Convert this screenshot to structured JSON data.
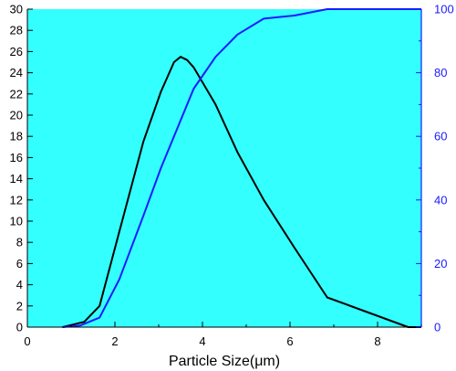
{
  "chart_data": {
    "type": "line",
    "xlabel": "Particle Size(μm)",
    "xlim": [
      0,
      9
    ],
    "x_ticks": [
      0,
      2,
      4,
      6,
      8
    ],
    "left_axis": {
      "ylim": [
        0,
        30
      ],
      "ticks": [
        0,
        2,
        4,
        6,
        8,
        10,
        12,
        14,
        16,
        18,
        20,
        22,
        24,
        26,
        28,
        30
      ],
      "color": "#000000"
    },
    "right_axis": {
      "ylim": [
        0,
        100
      ],
      "ticks": [
        0,
        20,
        40,
        60,
        80,
        100
      ],
      "color": "#1a1aff"
    },
    "background_color": "#33ffff",
    "grid": false,
    "series": [
      {
        "axis": "left",
        "color": "#000000",
        "x": [
          0.8,
          1.0,
          1.3,
          1.65,
          2.1,
          2.65,
          3.05,
          3.35,
          3.5,
          3.65,
          3.8,
          4.3,
          4.8,
          5.4,
          6.1,
          6.85,
          8.7,
          9.0
        ],
        "y": [
          0.0,
          0.2,
          0.5,
          2.0,
          9.0,
          17.5,
          22.2,
          25.0,
          25.5,
          25.2,
          24.5,
          21.0,
          16.5,
          12.0,
          7.5,
          2.8,
          0.0,
          0.0
        ]
      },
      {
        "axis": "right",
        "color": "#1a1aff",
        "x": [
          0.8,
          1.2,
          1.65,
          2.1,
          2.65,
          3.05,
          3.35,
          3.65,
          3.8,
          4.3,
          4.8,
          5.4,
          6.1,
          6.85,
          8.7,
          9.0
        ],
        "y": [
          0.0,
          0.5,
          3.0,
          15.0,
          35.0,
          50.0,
          60.0,
          70.0,
          75.0,
          85.0,
          92.0,
          97.0,
          98.0,
          100.0,
          100.0,
          100.0
        ]
      }
    ]
  }
}
